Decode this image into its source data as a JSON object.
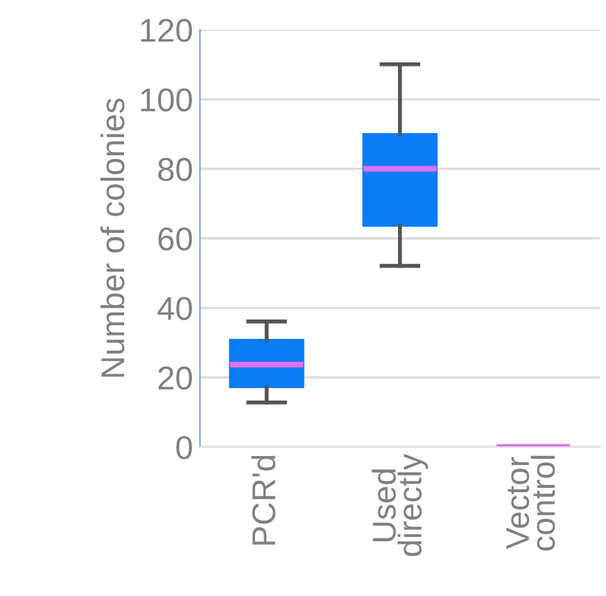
{
  "chart_data": {
    "type": "box",
    "ylabel": "Number of colonies",
    "categories": [
      "PCR'd",
      "Used\ndirectly",
      "Vector\ncontrol"
    ],
    "boxes": [
      {
        "low": 12.8,
        "q1": 17.2,
        "median": 23.7,
        "q3": 30.8,
        "high": 36.1
      },
      {
        "low": 52.1,
        "q1": 63.6,
        "median": 80,
        "q3": 90,
        "high": 110.1
      },
      {
        "low": 0,
        "q1": 0,
        "median": 0,
        "q3": 0,
        "high": 0
      }
    ],
    "color": "#0a7cf5",
    "ylim": [
      0,
      120
    ],
    "yticks": [
      0,
      20,
      40,
      60,
      80,
      100,
      120
    ],
    "grid": "y"
  }
}
